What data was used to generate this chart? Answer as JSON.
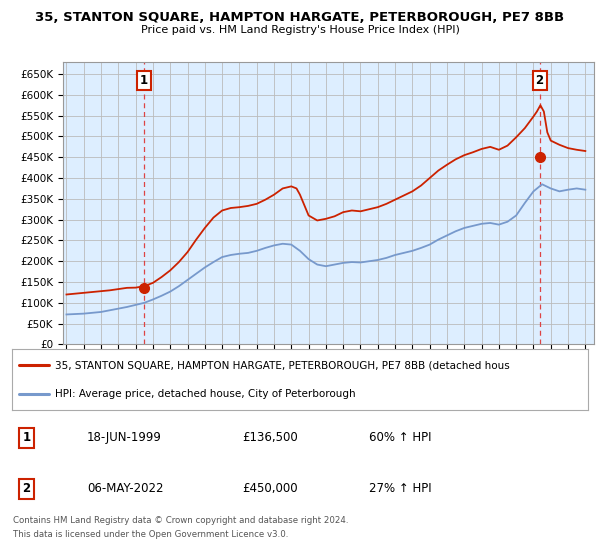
{
  "title": "35, STANTON SQUARE, HAMPTON HARGATE, PETERBOROUGH, PE7 8BB",
  "subtitle": "Price paid vs. HM Land Registry's House Price Index (HPI)",
  "ylabel_ticks": [
    "£0",
    "£50K",
    "£100K",
    "£150K",
    "£200K",
    "£250K",
    "£300K",
    "£350K",
    "£400K",
    "£450K",
    "£500K",
    "£550K",
    "£600K",
    "£650K"
  ],
  "ytick_values": [
    0,
    50000,
    100000,
    150000,
    200000,
    250000,
    300000,
    350000,
    400000,
    450000,
    500000,
    550000,
    600000,
    650000
  ],
  "ylim": [
    0,
    680000
  ],
  "xlim_start": 1994.8,
  "xlim_end": 2025.5,
  "background_color": "#ffffff",
  "grid_color": "#bbbbbb",
  "plot_bg_color": "#ddeeff",
  "red_color": "#cc2200",
  "blue_color": "#7799cc",
  "dashed_red_color": "#dd4444",
  "transaction1_year": 1999.46,
  "transaction1_price": 136500,
  "transaction2_year": 2022.35,
  "transaction2_price": 450000,
  "legend_line1": "35, STANTON SQUARE, HAMPTON HARGATE, PETERBOROUGH, PE7 8BB (detached hous",
  "legend_line2": "HPI: Average price, detached house, City of Peterborough",
  "table_row1_num": "1",
  "table_row1_date": "18-JUN-1999",
  "table_row1_price": "£136,500",
  "table_row1_hpi": "60% ↑ HPI",
  "table_row2_num": "2",
  "table_row2_date": "06-MAY-2022",
  "table_row2_price": "£450,000",
  "table_row2_hpi": "27% ↑ HPI",
  "footnote1": "Contains HM Land Registry data © Crown copyright and database right 2024.",
  "footnote2": "This data is licensed under the Open Government Licence v3.0.",
  "xtick_years": [
    1995,
    1996,
    1997,
    1998,
    1999,
    2000,
    2001,
    2002,
    2003,
    2004,
    2005,
    2006,
    2007,
    2008,
    2009,
    2010,
    2011,
    2012,
    2013,
    2014,
    2015,
    2016,
    2017,
    2018,
    2019,
    2020,
    2021,
    2022,
    2023,
    2024,
    2025
  ],
  "hpi_years": [
    1995.0,
    1995.5,
    1996.0,
    1996.5,
    1997.0,
    1997.5,
    1998.0,
    1998.5,
    1999.0,
    1999.5,
    2000.0,
    2000.5,
    2001.0,
    2001.5,
    2002.0,
    2002.5,
    2003.0,
    2003.5,
    2004.0,
    2004.5,
    2005.0,
    2005.5,
    2006.0,
    2006.5,
    2007.0,
    2007.5,
    2008.0,
    2008.5,
    2009.0,
    2009.5,
    2010.0,
    2010.5,
    2011.0,
    2011.5,
    2012.0,
    2012.5,
    2013.0,
    2013.5,
    2014.0,
    2014.5,
    2015.0,
    2015.5,
    2016.0,
    2016.5,
    2017.0,
    2017.5,
    2018.0,
    2018.5,
    2019.0,
    2019.5,
    2020.0,
    2020.5,
    2021.0,
    2021.5,
    2022.0,
    2022.5,
    2023.0,
    2023.5,
    2024.0,
    2024.5,
    2025.0
  ],
  "hpi_values": [
    72000,
    73000,
    74000,
    76000,
    78000,
    82000,
    86000,
    90000,
    95000,
    100000,
    108000,
    117000,
    127000,
    140000,
    155000,
    170000,
    185000,
    198000,
    210000,
    215000,
    218000,
    220000,
    225000,
    232000,
    238000,
    242000,
    240000,
    225000,
    205000,
    192000,
    188000,
    192000,
    196000,
    198000,
    197000,
    200000,
    203000,
    208000,
    215000,
    220000,
    225000,
    232000,
    240000,
    252000,
    262000,
    272000,
    280000,
    285000,
    290000,
    292000,
    288000,
    295000,
    310000,
    340000,
    368000,
    385000,
    375000,
    368000,
    372000,
    375000,
    372000
  ],
  "red_years": [
    1995.0,
    1995.5,
    1996.0,
    1996.5,
    1997.0,
    1997.5,
    1998.0,
    1998.5,
    1999.0,
    1999.5,
    2000.0,
    2000.5,
    2001.0,
    2001.5,
    2002.0,
    2002.5,
    2003.0,
    2003.5,
    2004.0,
    2004.5,
    2005.0,
    2005.5,
    2006.0,
    2006.5,
    2007.0,
    2007.5,
    2008.0,
    2008.3,
    2008.5,
    2009.0,
    2009.5,
    2010.0,
    2010.5,
    2011.0,
    2011.5,
    2012.0,
    2012.5,
    2013.0,
    2013.5,
    2014.0,
    2014.5,
    2015.0,
    2015.5,
    2016.0,
    2016.5,
    2017.0,
    2017.5,
    2018.0,
    2018.5,
    2019.0,
    2019.5,
    2020.0,
    2020.5,
    2021.0,
    2021.5,
    2022.0,
    2022.2,
    2022.4,
    2022.6,
    2022.8,
    2023.0,
    2023.5,
    2024.0,
    2024.5,
    2025.0
  ],
  "red_values": [
    120000,
    122000,
    124000,
    126000,
    128000,
    130000,
    133000,
    136000,
    136500,
    140000,
    148000,
    162000,
    178000,
    198000,
    222000,
    252000,
    280000,
    305000,
    322000,
    328000,
    330000,
    333000,
    338000,
    348000,
    360000,
    375000,
    380000,
    375000,
    360000,
    310000,
    298000,
    302000,
    308000,
    318000,
    322000,
    320000,
    325000,
    330000,
    338000,
    348000,
    358000,
    368000,
    382000,
    400000,
    418000,
    432000,
    445000,
    455000,
    462000,
    470000,
    475000,
    468000,
    478000,
    498000,
    520000,
    548000,
    560000,
    575000,
    560000,
    510000,
    490000,
    480000,
    472000,
    468000,
    465000
  ]
}
